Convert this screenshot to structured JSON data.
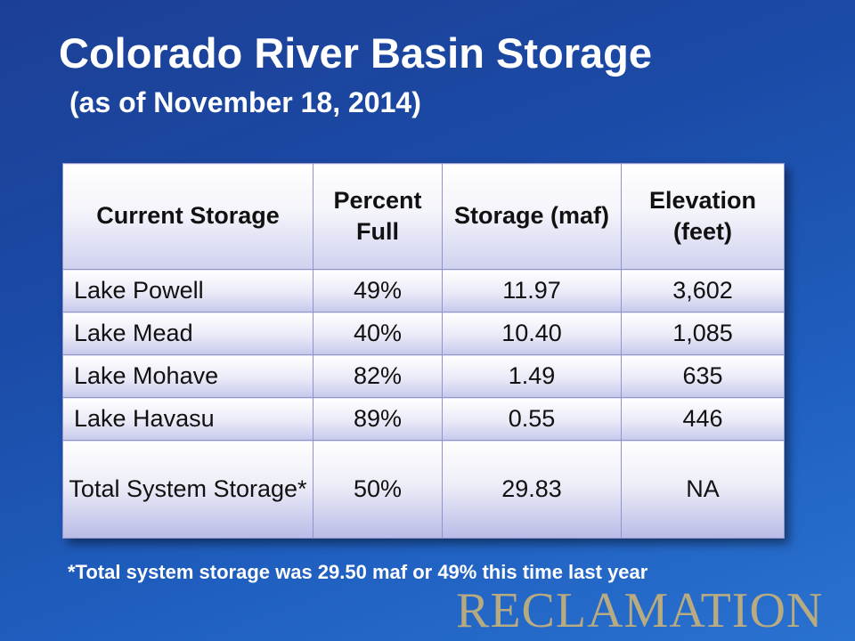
{
  "slide": {
    "title": "Colorado River Basin Storage",
    "subtitle": "(as of November 18, 2014)"
  },
  "table": {
    "headers": [
      "Current Storage",
      "Percent Full",
      "Storage (maf)",
      "Elevation (feet)"
    ],
    "rows": [
      [
        "Lake Powell",
        "49%",
        "11.97",
        "3,602"
      ],
      [
        "Lake Mead",
        "40%",
        "10.40",
        "1,085"
      ],
      [
        "Lake Mohave",
        "82%",
        "1.49",
        "635"
      ],
      [
        "Lake Havasu",
        "89%",
        "0.55",
        "446"
      ]
    ],
    "total": [
      "Total System Storage*",
      "50%",
      "29.83",
      "NA"
    ]
  },
  "footnote": "*Total system storage was 29.50 maf or 49% this time last year",
  "logo": {
    "text": "RECLAMATION",
    "color": "#c8b27a"
  },
  "colors": {
    "background": "#1b4aa6",
    "cell_border": "#8f93c9",
    "title_text": "#ffffff"
  }
}
